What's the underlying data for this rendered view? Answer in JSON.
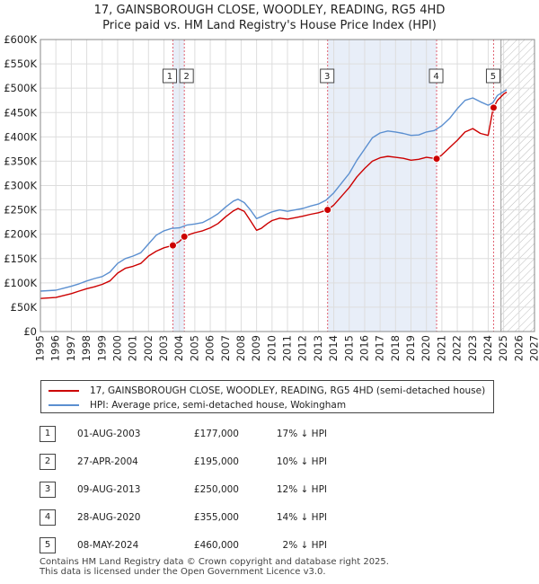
{
  "title_line1": "17, GAINSBOROUGH CLOSE, WOODLEY, READING, RG5 4HD",
  "title_line2": "Price paid vs. HM Land Registry's House Price Index (HPI)",
  "colors": {
    "price_paid": "#cc0000",
    "hpi": "#5b8fd0",
    "shaded_band": "#e8eef8",
    "marker_line": "#e06070",
    "hatch": "#bbbbbb"
  },
  "legend": {
    "price_label": "17, GAINSBOROUGH CLOSE, WOODLEY, READING, RG5 4HD (semi-detached house)",
    "hpi_label": "HPI: Average price, semi-detached house, Wokingham"
  },
  "sales": [
    {
      "num": "1",
      "date": "01-AUG-2003",
      "price": "£177,000",
      "hpi": "17% ↓ HPI"
    },
    {
      "num": "2",
      "date": "27-APR-2004",
      "price": "£195,000",
      "hpi": "10% ↓ HPI"
    },
    {
      "num": "3",
      "date": "09-AUG-2013",
      "price": "£250,000",
      "hpi": "12% ↓ HPI"
    },
    {
      "num": "4",
      "date": "28-AUG-2020",
      "price": "£355,000",
      "hpi": "14% ↓ HPI"
    },
    {
      "num": "5",
      "date": "08-MAY-2024",
      "price": "£460,000",
      "hpi": "2% ↓ HPI"
    }
  ],
  "footer_line1": "Contains HM Land Registry data © Crown copyright and database right 2025.",
  "footer_line2": "This data is licensed under the Open Government Licence v3.0.",
  "chart_data": {
    "type": "line",
    "xlim": [
      1995,
      2027
    ],
    "ylim": [
      0,
      600000
    ],
    "x_ticks": [
      1995,
      1996,
      1997,
      1998,
      1999,
      2000,
      2001,
      2002,
      2003,
      2004,
      2005,
      2006,
      2007,
      2008,
      2009,
      2010,
      2011,
      2012,
      2013,
      2014,
      2015,
      2016,
      2017,
      2018,
      2019,
      2020,
      2021,
      2022,
      2023,
      2024,
      2025,
      2026,
      2027
    ],
    "y_ticks": [
      {
        "value": 0,
        "label": "£0"
      },
      {
        "value": 50000,
        "label": "£50K"
      },
      {
        "value": 100000,
        "label": "£100K"
      },
      {
        "value": 150000,
        "label": "£150K"
      },
      {
        "value": 200000,
        "label": "£200K"
      },
      {
        "value": 250000,
        "label": "£250K"
      },
      {
        "value": 300000,
        "label": "£300K"
      },
      {
        "value": 350000,
        "label": "£350K"
      },
      {
        "value": 400000,
        "label": "£400K"
      },
      {
        "value": 450000,
        "label": "£450K"
      },
      {
        "value": 500000,
        "label": "£500K"
      },
      {
        "value": 550000,
        "label": "£550K"
      },
      {
        "value": 600000,
        "label": "£600K"
      }
    ],
    "grid": true,
    "shaded_ranges": [
      [
        2003.58,
        2004.32
      ],
      [
        2013.6,
        2020.66
      ]
    ],
    "hatched_from": 2024.83,
    "sale_markers": [
      {
        "label": "1",
        "x": 2003.58,
        "y": 177000
      },
      {
        "label": "2",
        "x": 2004.32,
        "y": 195000
      },
      {
        "label": "3",
        "x": 2013.6,
        "y": 250000
      },
      {
        "label": "4",
        "x": 2020.66,
        "y": 355000
      },
      {
        "label": "5",
        "x": 2024.35,
        "y": 460000
      }
    ],
    "series": [
      {
        "name": "HPI: Average price, semi-detached house, Wokingham",
        "points": [
          [
            1995.0,
            83000
          ],
          [
            1996.0,
            85000
          ],
          [
            1996.5,
            89000
          ],
          [
            1997.0,
            93000
          ],
          [
            1997.5,
            98000
          ],
          [
            1998.0,
            104000
          ],
          [
            1998.5,
            109000
          ],
          [
            1999.0,
            113000
          ],
          [
            1999.5,
            122000
          ],
          [
            2000.0,
            140000
          ],
          [
            2000.5,
            150000
          ],
          [
            2001.0,
            155000
          ],
          [
            2001.5,
            162000
          ],
          [
            2002.0,
            180000
          ],
          [
            2002.5,
            198000
          ],
          [
            2003.0,
            207000
          ],
          [
            2003.5,
            212000
          ],
          [
            2004.0,
            213000
          ],
          [
            2004.5,
            219000
          ],
          [
            2005.0,
            221000
          ],
          [
            2005.5,
            224000
          ],
          [
            2006.0,
            232000
          ],
          [
            2006.5,
            242000
          ],
          [
            2007.0,
            256000
          ],
          [
            2007.5,
            268000
          ],
          [
            2007.8,
            272000
          ],
          [
            2008.2,
            265000
          ],
          [
            2008.6,
            250000
          ],
          [
            2009.0,
            232000
          ],
          [
            2009.3,
            236000
          ],
          [
            2009.7,
            242000
          ],
          [
            2010.0,
            246000
          ],
          [
            2010.5,
            250000
          ],
          [
            2011.0,
            247000
          ],
          [
            2011.5,
            250000
          ],
          [
            2012.0,
            253000
          ],
          [
            2012.5,
            258000
          ],
          [
            2013.0,
            262000
          ],
          [
            2013.5,
            270000
          ],
          [
            2014.0,
            285000
          ],
          [
            2014.5,
            305000
          ],
          [
            2015.0,
            325000
          ],
          [
            2015.5,
            352000
          ],
          [
            2016.0,
            375000
          ],
          [
            2016.5,
            398000
          ],
          [
            2017.0,
            408000
          ],
          [
            2017.5,
            412000
          ],
          [
            2018.0,
            410000
          ],
          [
            2018.5,
            407000
          ],
          [
            2019.0,
            403000
          ],
          [
            2019.5,
            404000
          ],
          [
            2020.0,
            410000
          ],
          [
            2020.5,
            413000
          ],
          [
            2021.0,
            423000
          ],
          [
            2021.5,
            438000
          ],
          [
            2022.0,
            458000
          ],
          [
            2022.5,
            475000
          ],
          [
            2023.0,
            480000
          ],
          [
            2023.5,
            472000
          ],
          [
            2024.0,
            465000
          ],
          [
            2024.3,
            470000
          ],
          [
            2024.6,
            485000
          ],
          [
            2025.0,
            493000
          ],
          [
            2025.2,
            497000
          ]
        ]
      },
      {
        "name": "17, GAINSBOROUGH CLOSE, WOODLEY, READING, RG5 4HD (semi-detached house)",
        "points": [
          [
            1995.0,
            68000
          ],
          [
            1996.0,
            70000
          ],
          [
            1996.5,
            74000
          ],
          [
            1997.0,
            78000
          ],
          [
            1997.5,
            83000
          ],
          [
            1998.0,
            88000
          ],
          [
            1998.5,
            92000
          ],
          [
            1999.0,
            97000
          ],
          [
            1999.5,
            104000
          ],
          [
            2000.0,
            120000
          ],
          [
            2000.5,
            130000
          ],
          [
            2001.0,
            134000
          ],
          [
            2001.5,
            140000
          ],
          [
            2002.0,
            155000
          ],
          [
            2002.5,
            165000
          ],
          [
            2003.0,
            172000
          ],
          [
            2003.58,
            177000
          ],
          [
            2004.0,
            185000
          ],
          [
            2004.32,
            195000
          ],
          [
            2004.7,
            200000
          ],
          [
            2005.0,
            203000
          ],
          [
            2005.5,
            207000
          ],
          [
            2006.0,
            213000
          ],
          [
            2006.5,
            222000
          ],
          [
            2007.0,
            236000
          ],
          [
            2007.5,
            248000
          ],
          [
            2007.8,
            253000
          ],
          [
            2008.2,
            247000
          ],
          [
            2008.6,
            228000
          ],
          [
            2009.0,
            208000
          ],
          [
            2009.3,
            212000
          ],
          [
            2009.7,
            222000
          ],
          [
            2010.0,
            228000
          ],
          [
            2010.5,
            233000
          ],
          [
            2011.0,
            231000
          ],
          [
            2011.5,
            234000
          ],
          [
            2012.0,
            237000
          ],
          [
            2012.5,
            241000
          ],
          [
            2013.0,
            244000
          ],
          [
            2013.6,
            250000
          ],
          [
            2014.0,
            260000
          ],
          [
            2014.5,
            278000
          ],
          [
            2015.0,
            296000
          ],
          [
            2015.5,
            318000
          ],
          [
            2016.0,
            335000
          ],
          [
            2016.5,
            350000
          ],
          [
            2017.0,
            357000
          ],
          [
            2017.5,
            360000
          ],
          [
            2018.0,
            358000
          ],
          [
            2018.5,
            356000
          ],
          [
            2019.0,
            352000
          ],
          [
            2019.5,
            354000
          ],
          [
            2020.0,
            358000
          ],
          [
            2020.66,
            355000
          ],
          [
            2021.0,
            363000
          ],
          [
            2021.5,
            378000
          ],
          [
            2022.0,
            393000
          ],
          [
            2022.5,
            410000
          ],
          [
            2023.0,
            417000
          ],
          [
            2023.5,
            407000
          ],
          [
            2024.0,
            403000
          ],
          [
            2024.3,
            455000
          ],
          [
            2024.35,
            460000
          ],
          [
            2024.6,
            475000
          ],
          [
            2025.0,
            488000
          ],
          [
            2025.2,
            492000
          ]
        ]
      }
    ]
  }
}
